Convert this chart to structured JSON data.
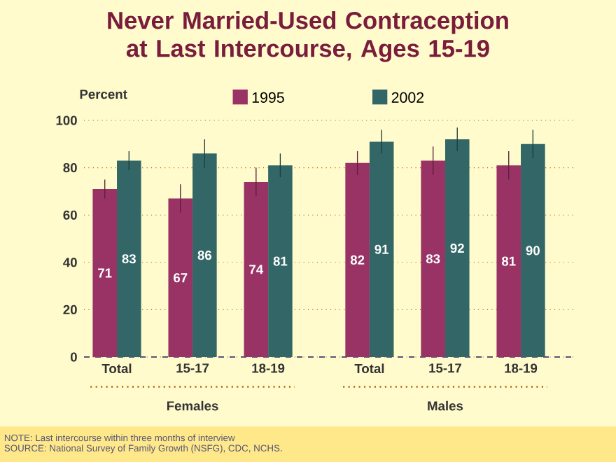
{
  "chart_data": {
    "type": "bar",
    "title": "Never Married-Used Contraception at Last Intercourse, Ages 15-19",
    "ylabel": "Percent",
    "categories": [
      "Total",
      "15-17",
      "18-19",
      "Total",
      "15-17",
      "18-19"
    ],
    "series": [
      {
        "name": "1995",
        "color": "#993366",
        "values": [
          71,
          67,
          74,
          82,
          83,
          81
        ],
        "errors": [
          4,
          6,
          6,
          5,
          6,
          6
        ]
      },
      {
        "name": "2002",
        "color": "#336666",
        "values": [
          83,
          86,
          81,
          91,
          92,
          90
        ],
        "errors": [
          4,
          6,
          5,
          5,
          5,
          6
        ]
      }
    ],
    "ylim": [
      0,
      100
    ],
    "yticks": [
      0,
      20,
      40,
      60,
      80,
      100
    ],
    "grid": "y",
    "legend": "top",
    "data_labels": true,
    "annotations": [
      "Females",
      "Males",
      "NOTE: Last intercourse within three months of interview",
      "SOURCE: National Survey of Family Growth (NSFG), CDC, NCHS."
    ]
  }
}
